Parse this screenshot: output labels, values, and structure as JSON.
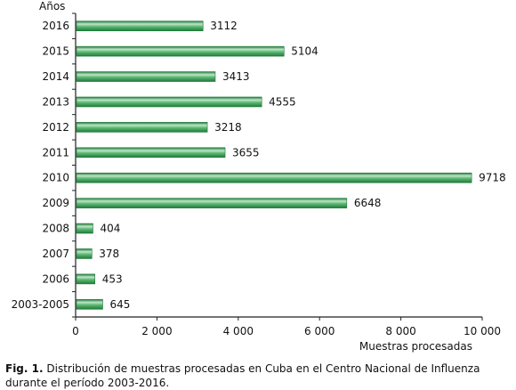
{
  "chart_data": {
    "type": "bar",
    "orientation": "horizontal",
    "categories": [
      "2016",
      "2015",
      "2014",
      "2013",
      "2012",
      "2011",
      "2010",
      "2009",
      "2008",
      "2007",
      "2006",
      "2003-2005"
    ],
    "values": [
      3112,
      5104,
      3413,
      4555,
      3218,
      3655,
      9718,
      6648,
      404,
      378,
      453,
      645
    ],
    "value_labels": [
      "3112",
      "5104",
      "3413",
      "4555",
      "3218",
      "3655",
      "9718",
      "6648",
      "404",
      "378",
      "453",
      "645"
    ],
    "xlabel": "Muestras procesadas",
    "ylabel": "Años",
    "xlim": [
      0,
      10000
    ],
    "xticks": [
      0,
      2000,
      4000,
      6000,
      8000,
      10000
    ],
    "xtick_labels": [
      "0",
      "2 000",
      "4 000",
      "6 000",
      "8 000",
      "10 000"
    ],
    "grid": false,
    "colors": {
      "bar_dark": "#1f7a3a",
      "bar_mid": "#3fa55c",
      "bar_light": "#bfe6c8",
      "axis": "#222222",
      "text": "#111111"
    }
  },
  "caption": {
    "label": "Fig. 1.",
    "text": "Distribución de muestras procesadas en Cuba en el Centro Nacional de Influenza durante el período 2003-2016."
  }
}
